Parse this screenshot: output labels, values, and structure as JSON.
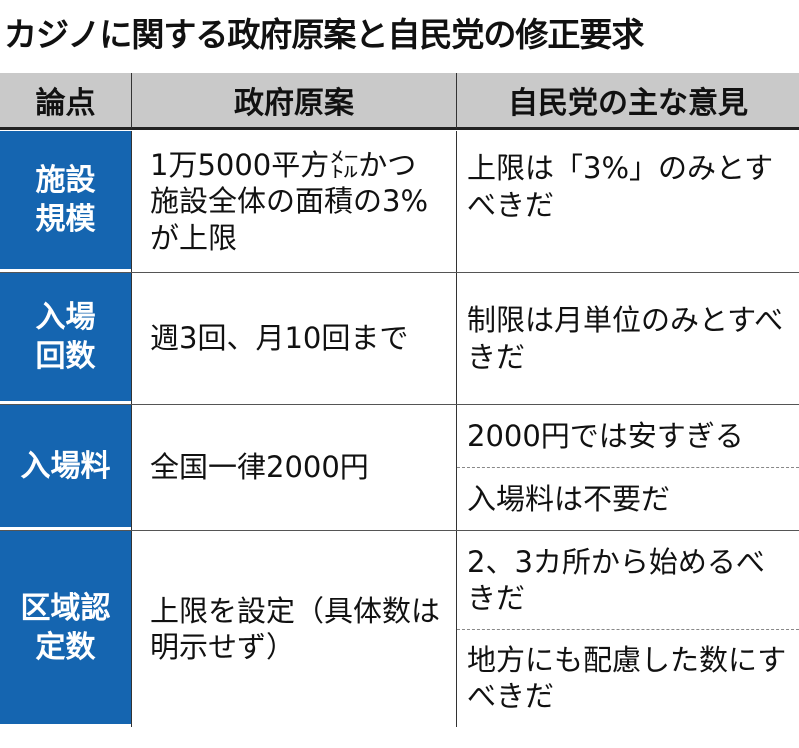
{
  "title": "カジノに関する政府原案と自民党の修正要求",
  "headers": [
    "論点",
    "政府原案",
    "自民党の主な意見"
  ],
  "colors": {
    "key_bg": "#1565b0",
    "header_bg": "#c9c9c9"
  },
  "rows": [
    {
      "issue": "施設規模",
      "government": "1万5000平方㍍かつ施設全体の面積の3%が上限",
      "ldp": [
        "上限は「3%」のみとすべきだ"
      ]
    },
    {
      "issue": "入場回数",
      "government": "週3回、月10回まで",
      "ldp": [
        "制限は月単位のみとすべきだ"
      ]
    },
    {
      "issue": "入場料",
      "government": "全国一律2000円",
      "ldp": [
        "2000円では安すぎる",
        "入場料は不要だ"
      ]
    },
    {
      "issue": "区域認定数",
      "government": "上限を設定（具体数は明示せず）",
      "ldp": [
        "2、3カ所から始めるべきだ",
        "地方にも配慮した数にすべきだ"
      ]
    }
  ]
}
